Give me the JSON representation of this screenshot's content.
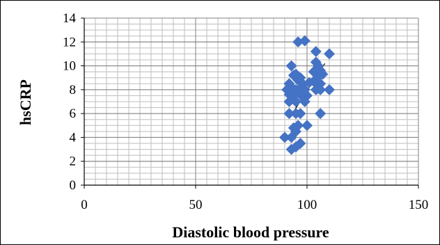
{
  "chart_data": {
    "type": "scatter",
    "title": "",
    "xlabel": "Diastolic blood pressure",
    "ylabel": "hsCRP",
    "xlim": [
      0,
      150
    ],
    "ylim": [
      0,
      14
    ],
    "x_ticks": [
      0,
      50,
      100,
      150
    ],
    "y_ticks": [
      0,
      2,
      4,
      6,
      8,
      10,
      12,
      14
    ],
    "x_minor_step": 5,
    "y_minor_step": 0.5,
    "grid": true,
    "legend": "none",
    "marker": "diamond",
    "marker_color": "#4472C4",
    "series": [
      {
        "points": [
          [
            96,
            12
          ],
          [
            99,
            12.1
          ],
          [
            104,
            11.2
          ],
          [
            110,
            11
          ],
          [
            93,
            10
          ],
          [
            104,
            10.3
          ],
          [
            105,
            10
          ],
          [
            106,
            9.6
          ],
          [
            103,
            9.5
          ],
          [
            95,
            9.3
          ],
          [
            97,
            9.0
          ],
          [
            94,
            9.2
          ],
          [
            105,
            9.1
          ],
          [
            107,
            9.3
          ],
          [
            96,
            8.8
          ],
          [
            92,
            8.5
          ],
          [
            98,
            8.5
          ],
          [
            101,
            8.6
          ],
          [
            103,
            8.7
          ],
          [
            106,
            8.5
          ],
          [
            91,
            8.0
          ],
          [
            93,
            8.2
          ],
          [
            95,
            8.0
          ],
          [
            97,
            8.1
          ],
          [
            99,
            8.0
          ],
          [
            104,
            8.0
          ],
          [
            106,
            8.0
          ],
          [
            110,
            8.0
          ],
          [
            92,
            7.6
          ],
          [
            94,
            7.5
          ],
          [
            96,
            7.8
          ],
          [
            98,
            7.4
          ],
          [
            100,
            7.5
          ],
          [
            92,
            7.0
          ],
          [
            95,
            7.0
          ],
          [
            99,
            7.0
          ],
          [
            92,
            6.0
          ],
          [
            95,
            6.0
          ],
          [
            97,
            6.0
          ],
          [
            106,
            6.0
          ],
          [
            96,
            5.0
          ],
          [
            100,
            5.0
          ],
          [
            94,
            4.8
          ],
          [
            95,
            4.5
          ],
          [
            90,
            4.0
          ],
          [
            93,
            4.0
          ],
          [
            97,
            3.5
          ],
          [
            93,
            3.0
          ],
          [
            95,
            3.2
          ]
        ]
      }
    ],
    "trendline": {
      "type": "linear",
      "x": [
        92,
        108
      ],
      "y": [
        5.6,
        10.2
      ]
    }
  }
}
